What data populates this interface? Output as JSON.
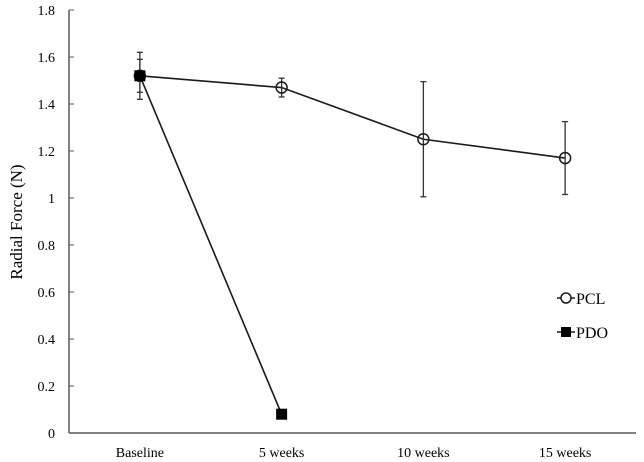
{
  "chart_data": {
    "type": "line",
    "title": "",
    "xlabel": "",
    "ylabel": "Radial Force (N)",
    "ylim": [
      0,
      1.8
    ],
    "yticks": [
      0,
      0.2,
      0.4,
      0.6,
      0.8,
      1,
      1.2,
      1.4,
      1.6,
      1.8
    ],
    "ytick_labels": [
      "0",
      "0.2",
      "0.4",
      "0.6",
      "0.8",
      "1",
      "1.2",
      "1.4",
      "1.6",
      "1.8"
    ],
    "categories": [
      "Baseline",
      "5 weeks",
      "10 weeks",
      "15 weeks"
    ],
    "grid": false,
    "legend_position": "right",
    "series": [
      {
        "name": "PCL",
        "marker": "open-circle",
        "values": [
          1.52,
          1.47,
          1.25,
          1.17
        ],
        "error": [
          0.07,
          0.04,
          0.245,
          0.155
        ]
      },
      {
        "name": "PDO",
        "marker": "filled-square",
        "values": [
          1.52,
          0.08,
          null,
          null
        ],
        "error": [
          0.1,
          0,
          null,
          null
        ]
      }
    ]
  },
  "legend": {
    "items": [
      {
        "label": "PCL"
      },
      {
        "label": "PDO"
      }
    ]
  },
  "colors": {
    "line": "#1a1a1a",
    "axis": "#595959"
  }
}
